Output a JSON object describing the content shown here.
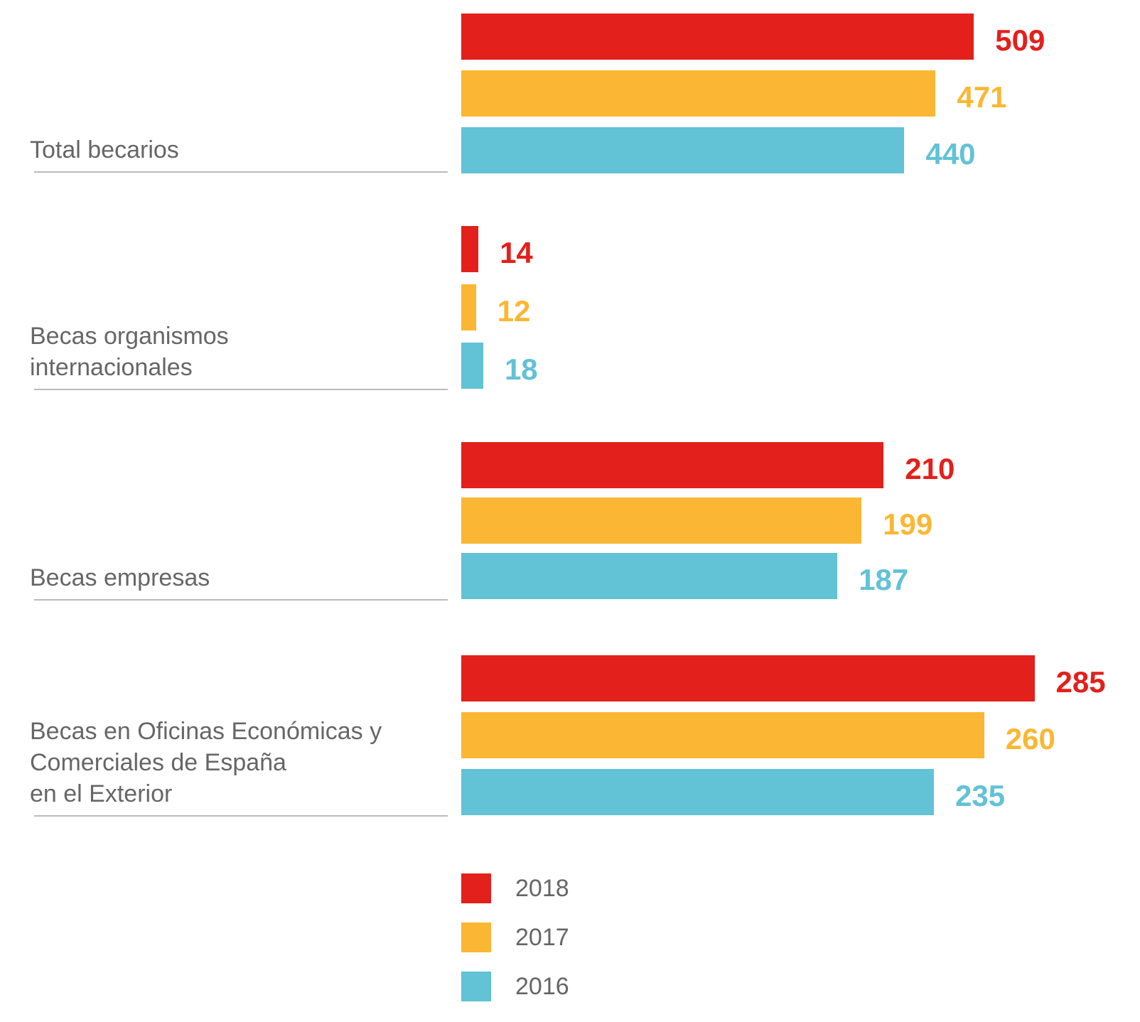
{
  "chart_data": {
    "type": "bar",
    "orientation": "horizontal",
    "categories": [
      "Total becarios",
      "Becas organismos\ninternacionales",
      "Becas empresas",
      "Becas en Oficinas Económicas y\nComerciales de España\nen el Exterior"
    ],
    "series": [
      {
        "name": "2018",
        "color": "#e3201b",
        "values": [
          509,
          14,
          210,
          285
        ]
      },
      {
        "name": "2017",
        "color": "#fbb733",
        "values": [
          471,
          12,
          199,
          260
        ]
      },
      {
        "name": "2016",
        "color": "#62c2d6",
        "values": [
          440,
          18,
          187,
          235
        ]
      }
    ]
  }
}
